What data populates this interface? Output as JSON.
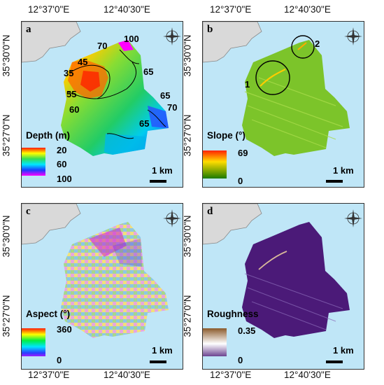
{
  "axes": {
    "top_lon": [
      "12°37'0\"E",
      "12°40'30\"E"
    ],
    "bottom_lon": [
      "12°37'0\"E",
      "12°40'30\"E"
    ],
    "lat": [
      "35°30'0\"N",
      "35°27'0\"N"
    ]
  },
  "panels": [
    {
      "letter": "a",
      "legend_title": "Depth (m)",
      "legend_values": [
        "20",
        "60",
        "100"
      ],
      "contours": [
        "100",
        "70",
        "45",
        "35",
        "65",
        "55",
        "60",
        "65",
        "70",
        "65"
      ],
      "scale": "1 km",
      "colors": [
        "#ff1a00",
        "#ffff00",
        "#33dd55",
        "#00e5ff",
        "#1a3cff",
        "#ff00ff"
      ]
    },
    {
      "letter": "b",
      "legend_title": "Slope (°)",
      "legend_values": [
        "69",
        "0"
      ],
      "circle_labels": [
        "1",
        "2"
      ],
      "scale": "1 km",
      "colors": [
        "#ff2200",
        "#ffdd00",
        "#1a7a00"
      ]
    },
    {
      "letter": "c",
      "legend_title": "Aspect (°)",
      "legend_values": [
        "360",
        "0"
      ],
      "scale": "1 km",
      "colors": [
        "#ff1a00",
        "#ffff00",
        "#00ee44",
        "#00e5ff",
        "#2a3cff",
        "#ff00ff"
      ]
    },
    {
      "letter": "d",
      "legend_title": "Roughness",
      "legend_values": [
        "0.35",
        "0"
      ],
      "scale": "1 km",
      "colors": [
        "#8a5a2b",
        "#ffffff",
        "#4b1a78"
      ]
    }
  ],
  "compass_letters": [
    "N",
    "S",
    "E",
    "W"
  ]
}
